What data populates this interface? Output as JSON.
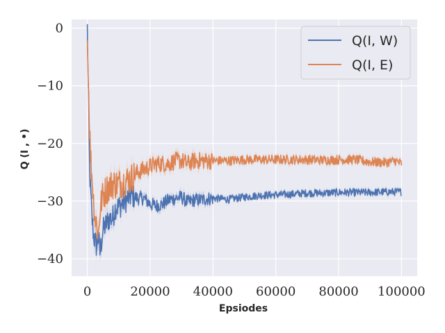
{
  "chart_data": {
    "type": "line",
    "title": "",
    "xlabel": "Epsiodes",
    "ylabel": "Q (I , •)",
    "xlim": [
      -5000,
      105000
    ],
    "ylim": [
      -43,
      1.5
    ],
    "xticks": [
      0,
      20000,
      40000,
      60000,
      80000,
      100000
    ],
    "xtick_labels": [
      "0",
      "20000",
      "40000",
      "60000",
      "80000",
      "100000"
    ],
    "yticks": [
      0,
      -10,
      -20,
      -30,
      -40
    ],
    "ytick_labels": [
      "0",
      "−10",
      "−20",
      "−30",
      "−40"
    ],
    "grid": true,
    "legend_position": "top-right",
    "background": "#eaeaf2",
    "series": [
      {
        "name": "Q(I, W)",
        "color": "#4c72b0",
        "noise": 1.2,
        "x": [
          0,
          300,
          700,
          1000,
          1500,
          2000,
          2500,
          3000,
          3500,
          4000,
          5000,
          6000,
          7000,
          8000,
          9000,
          10000,
          12000,
          14000,
          16000,
          18000,
          20000,
          22000,
          24000,
          26000,
          28000,
          30000,
          32000,
          34000,
          36000,
          38000,
          40000,
          45000,
          50000,
          55000,
          60000,
          65000,
          70000,
          75000,
          80000,
          85000,
          90000,
          95000,
          100000
        ],
        "y": [
          0,
          -10,
          -24,
          -28,
          -33,
          -36,
          -37,
          -38,
          -36,
          -39,
          -35,
          -34,
          -33,
          -33,
          -31,
          -31,
          -30,
          -29,
          -29.5,
          -29.5,
          -30.5,
          -30.8,
          -30.5,
          -29.8,
          -29.5,
          -29.3,
          -30.2,
          -29.8,
          -29.8,
          -29.6,
          -29.5,
          -29.7,
          -29.3,
          -29,
          -28.9,
          -28.8,
          -28.6,
          -28.6,
          -28.5,
          -28.5,
          -28.5,
          -28.4,
          -28.4
        ]
      },
      {
        "name": "Q(I, E)",
        "color": "#dd8452",
        "noise": 1.5,
        "x": [
          0,
          300,
          600,
          1000,
          1500,
          2000,
          2500,
          3000,
          3500,
          4000,
          4500,
          5000,
          6000,
          7000,
          8000,
          9000,
          10000,
          12000,
          14000,
          16000,
          18000,
          20000,
          22000,
          24000,
          26000,
          28000,
          30000,
          32000,
          34000,
          36000,
          40000,
          45000,
          50000,
          55000,
          60000,
          65000,
          70000,
          75000,
          80000,
          85000,
          90000,
          95000,
          98000,
          100000
        ],
        "y": [
          -2,
          -8,
          -15,
          -22,
          -26,
          -30,
          -33,
          -34,
          -36,
          -32,
          -30,
          -29,
          -28,
          -27.5,
          -27,
          -27,
          -27,
          -26.5,
          -26,
          -25,
          -24.5,
          -24,
          -23.5,
          -23.5,
          -23.5,
          -23,
          -23,
          -23.5,
          -23,
          -23,
          -23,
          -23,
          -22.8,
          -22.8,
          -22.8,
          -22.8,
          -22.8,
          -22.9,
          -22.8,
          -22.8,
          -23.2,
          -23.3,
          -23,
          -23.5
        ]
      }
    ]
  }
}
